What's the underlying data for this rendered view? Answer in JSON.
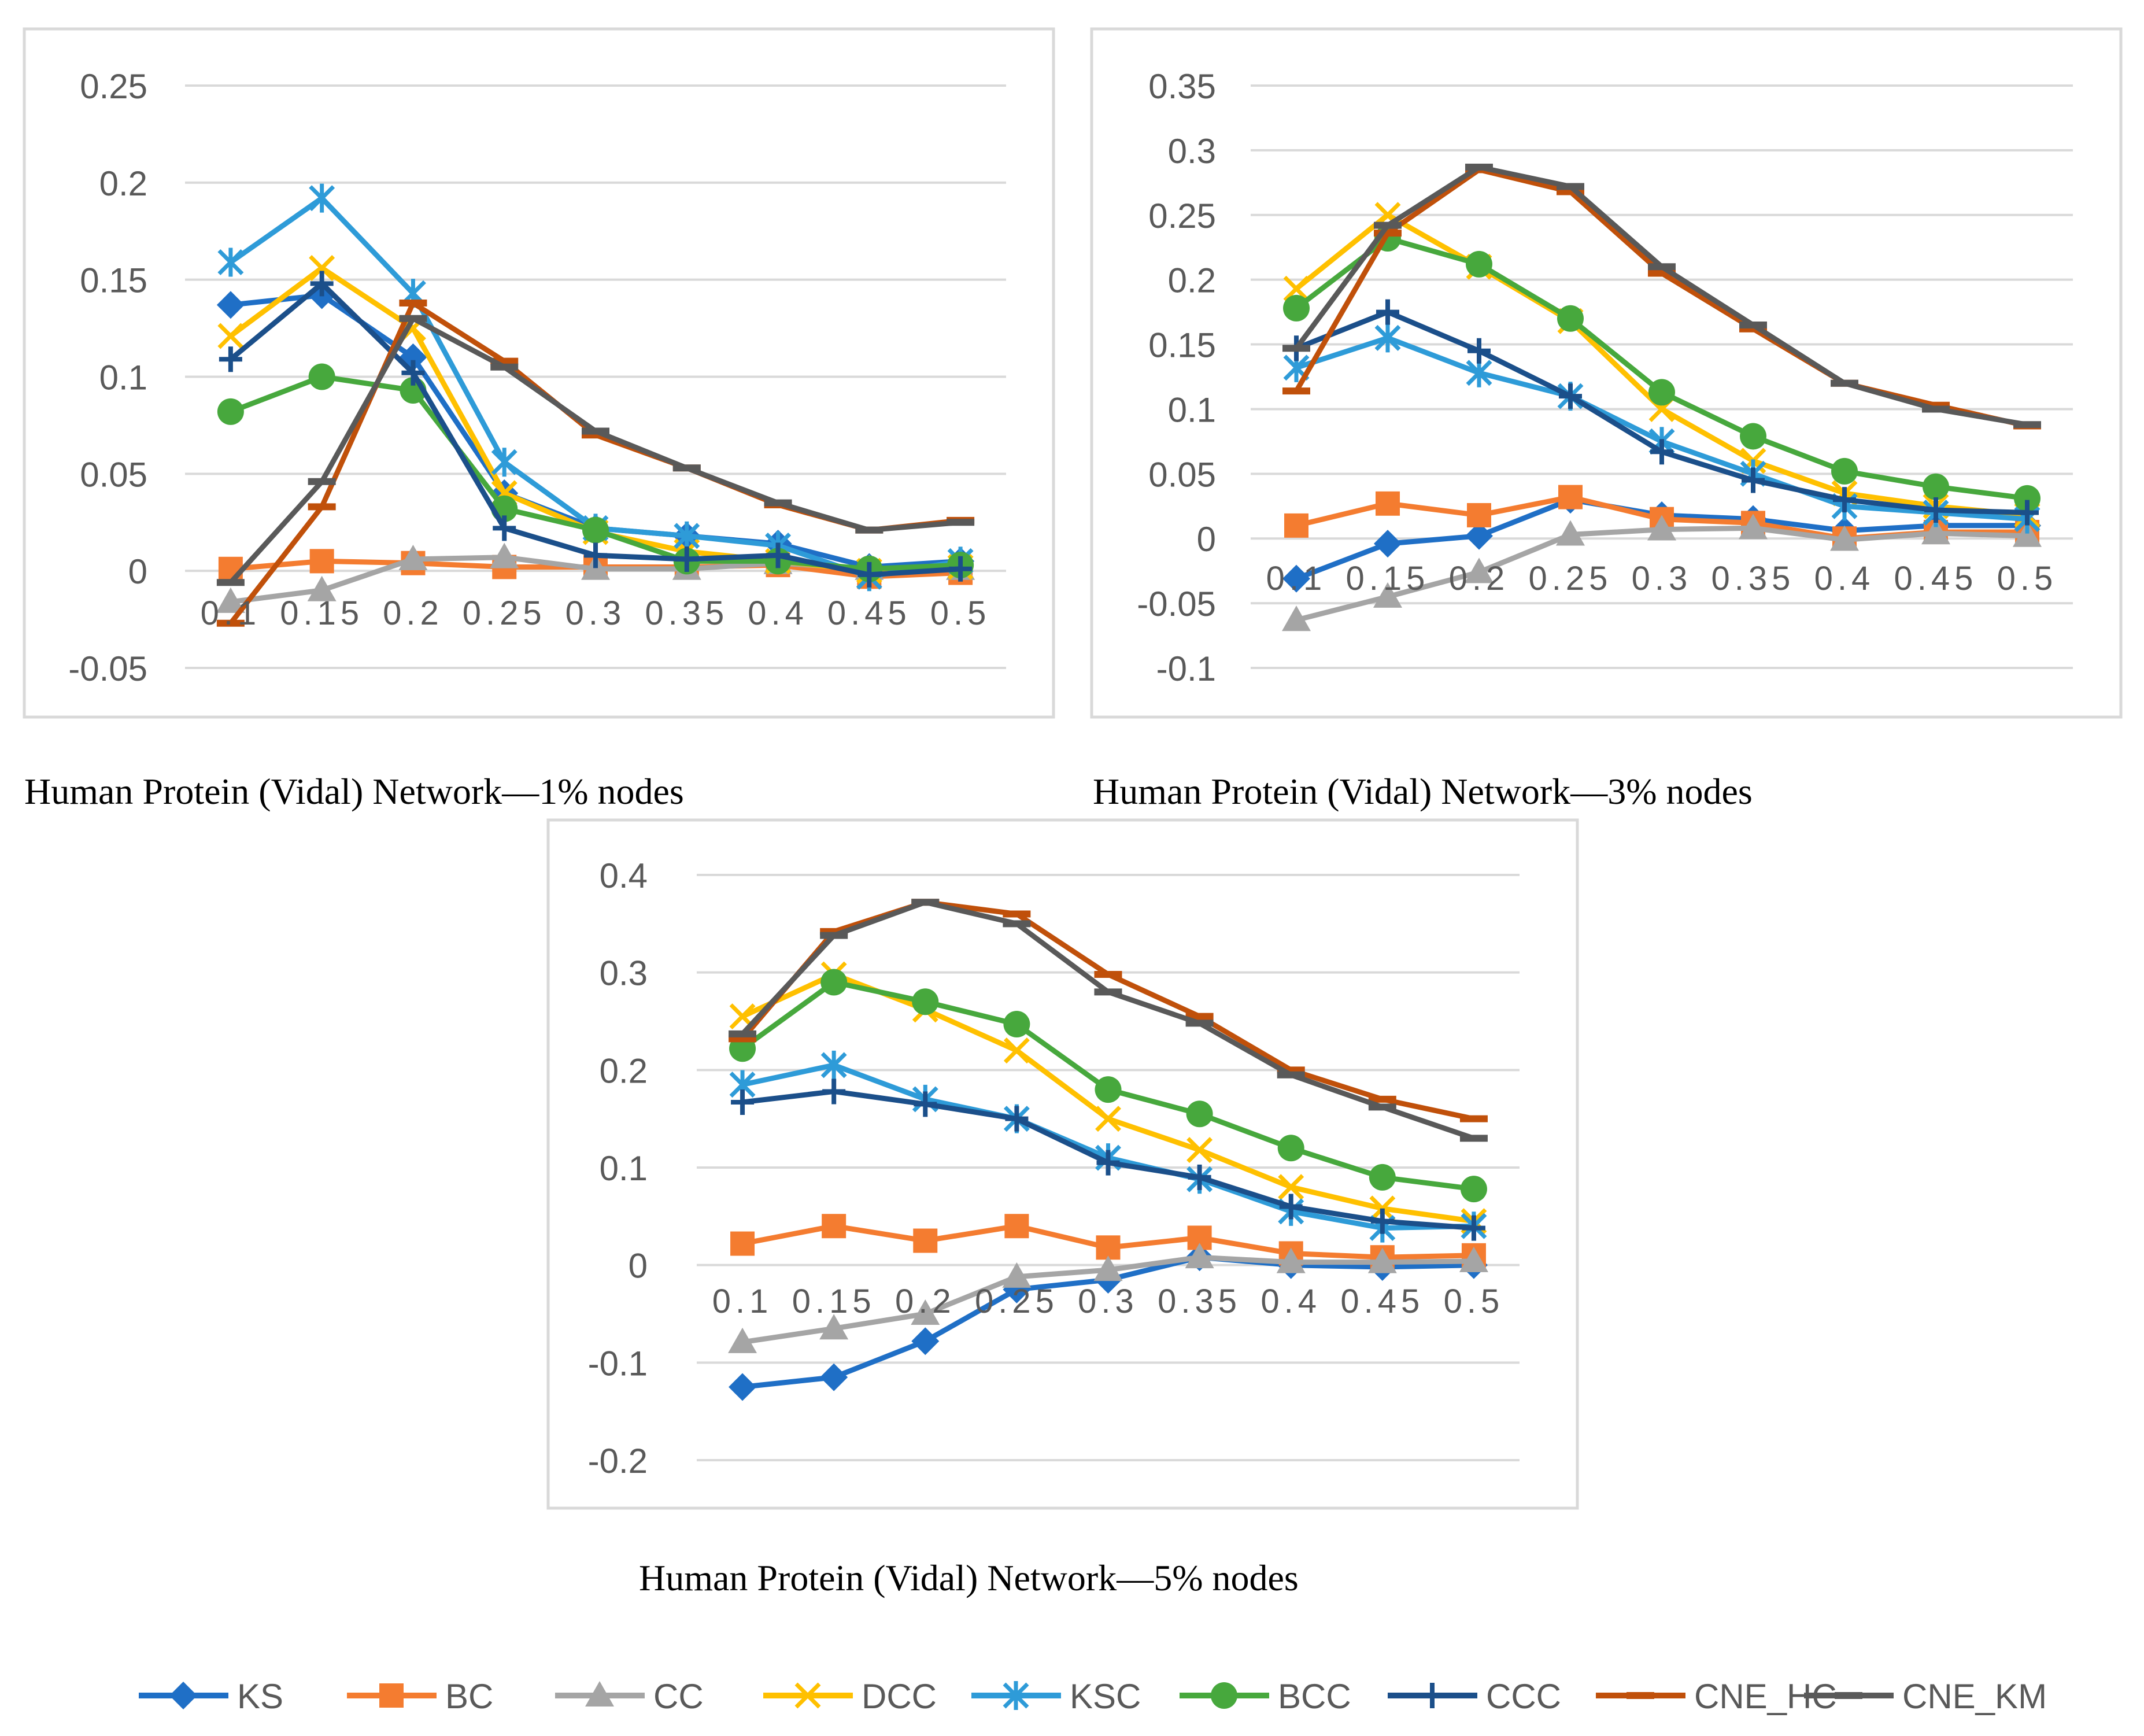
{
  "series_styles": [
    {
      "key": "KS",
      "color": "#1F6FC6",
      "marker": "diamond"
    },
    {
      "key": "BC",
      "color": "#F47C30",
      "marker": "square"
    },
    {
      "key": "CC",
      "color": "#A5A5A5",
      "marker": "triangle"
    },
    {
      "key": "DCC",
      "color": "#FFC000",
      "marker": "x"
    },
    {
      "key": "KSC",
      "color": "#2E9BD8",
      "marker": "star"
    },
    {
      "key": "BCC",
      "color": "#47A83D",
      "marker": "circle"
    },
    {
      "key": "CCC",
      "color": "#1B4F8A",
      "marker": "plus"
    },
    {
      "key": "CNE_HC",
      "color": "#C0500A",
      "marker": "dash"
    },
    {
      "key": "CNE_KM",
      "color": "#595959",
      "marker": "dash"
    }
  ],
  "legend": [
    "KS",
    "BC",
    "CC",
    "DCC",
    "KSC",
    "BCC",
    "CCC",
    "CNE_HC",
    "CNE_KM"
  ],
  "chart_data": [
    {
      "type": "line",
      "title": "Human Protein (Vidal) Network—1% nodes",
      "categories": [
        "0.1",
        "0.15",
        "0.2",
        "0.25",
        "0.3",
        "0.35",
        "0.4",
        "0.45",
        "0.5"
      ],
      "yticks": [
        "0.25",
        "0.2",
        "0.15",
        "0.1",
        "0.05",
        "0",
        "-0.05"
      ],
      "ylim": [
        -0.05,
        0.25
      ],
      "series": [
        {
          "name": "KS",
          "values": [
            0.137,
            0.142,
            0.11,
            0.04,
            0.022,
            0.018,
            0.014,
            0.002,
            0.005
          ]
        },
        {
          "name": "BC",
          "values": [
            0.001,
            0.005,
            0.004,
            0.002,
            0.002,
            0.002,
            0.003,
            -0.003,
            -0.001
          ]
        },
        {
          "name": "CC",
          "values": [
            -0.016,
            -0.01,
            0.006,
            0.007,
            0.001,
            0.001,
            0.004,
            0.001,
            0.001
          ]
        },
        {
          "name": "DCC",
          "values": [
            0.121,
            0.156,
            0.125,
            0.04,
            0.02,
            0.01,
            0.005,
            0.0,
            0.002
          ]
        },
        {
          "name": "KSC",
          "values": [
            0.159,
            0.192,
            0.143,
            0.056,
            0.022,
            0.018,
            0.013,
            -0.003,
            0.005
          ]
        },
        {
          "name": "BCC",
          "values": [
            0.082,
            0.1,
            0.093,
            0.032,
            0.021,
            0.005,
            0.005,
            0.001,
            0.003
          ]
        },
        {
          "name": "CCC",
          "values": [
            0.109,
            0.148,
            0.102,
            0.022,
            0.008,
            0.006,
            0.008,
            -0.002,
            0.001
          ]
        },
        {
          "name": "CNE_HC",
          "values": [
            -0.027,
            0.033,
            0.138,
            0.108,
            0.07,
            0.053,
            0.034,
            0.021,
            0.026
          ]
        },
        {
          "name": "CNE_KM",
          "values": [
            -0.006,
            0.046,
            0.13,
            0.105,
            0.072,
            0.053,
            0.035,
            0.021,
            0.025
          ]
        }
      ]
    },
    {
      "type": "line",
      "title": "Human Protein (Vidal) Network—3% nodes",
      "categories": [
        "0.1",
        "0.15",
        "0.2",
        "0.25",
        "0.3",
        "0.35",
        "0.4",
        "0.45",
        "0.5"
      ],
      "yticks": [
        "0.35",
        "0.3",
        "0.25",
        "0.2",
        "0.15",
        "0.1",
        "0.05",
        "0",
        "-0.05",
        "-0.1"
      ],
      "ylim": [
        -0.1,
        0.35
      ],
      "series": [
        {
          "name": "KS",
          "values": [
            -0.031,
            -0.004,
            0.002,
            0.03,
            0.018,
            0.015,
            0.006,
            0.01,
            0.01
          ]
        },
        {
          "name": "BC",
          "values": [
            0.01,
            0.027,
            0.018,
            0.032,
            0.015,
            0.012,
            0.0,
            0.005,
            0.005
          ]
        },
        {
          "name": "CC",
          "values": [
            -0.063,
            -0.045,
            -0.026,
            0.003,
            0.007,
            0.008,
            -0.001,
            0.004,
            0.002
          ]
        },
        {
          "name": "DCC",
          "values": [
            0.193,
            0.25,
            0.21,
            0.168,
            0.1,
            0.06,
            0.035,
            0.025,
            0.018
          ]
        },
        {
          "name": "KSC",
          "values": [
            0.132,
            0.155,
            0.128,
            0.11,
            0.075,
            0.05,
            0.025,
            0.02,
            0.015
          ]
        },
        {
          "name": "BCC",
          "values": [
            0.178,
            0.232,
            0.212,
            0.17,
            0.113,
            0.079,
            0.052,
            0.04,
            0.031
          ]
        },
        {
          "name": "CCC",
          "values": [
            0.147,
            0.175,
            0.145,
            0.11,
            0.067,
            0.045,
            0.03,
            0.022,
            0.02
          ]
        },
        {
          "name": "CNE_HC",
          "values": [
            0.114,
            0.236,
            0.285,
            0.268,
            0.205,
            0.162,
            0.12,
            0.103,
            0.087
          ]
        },
        {
          "name": "CNE_KM",
          "values": [
            0.147,
            0.242,
            0.287,
            0.272,
            0.21,
            0.165,
            0.12,
            0.1,
            0.088
          ]
        }
      ]
    },
    {
      "type": "line",
      "title": "Human Protein (Vidal) Network—5% nodes",
      "categories": [
        "0.1",
        "0.15",
        "0.2",
        "0.25",
        "0.3",
        "0.35",
        "0.4",
        "0.45",
        "0.5"
      ],
      "yticks": [
        "0.4",
        "0.3",
        "0.2",
        "0.1",
        "0",
        "-0.1",
        "-0.2"
      ],
      "ylim": [
        -0.2,
        0.4
      ],
      "series": [
        {
          "name": "KS",
          "values": [
            -0.125,
            -0.115,
            -0.078,
            -0.025,
            -0.015,
            0.008,
            0.0,
            -0.002,
            0.0
          ]
        },
        {
          "name": "BC",
          "values": [
            0.022,
            0.04,
            0.025,
            0.04,
            0.018,
            0.028,
            0.012,
            0.008,
            0.01
          ]
        },
        {
          "name": "CC",
          "values": [
            -0.079,
            -0.065,
            -0.05,
            -0.012,
            -0.005,
            0.008,
            0.003,
            0.003,
            0.004
          ]
        },
        {
          "name": "DCC",
          "values": [
            0.255,
            0.298,
            0.262,
            0.22,
            0.15,
            0.118,
            0.08,
            0.058,
            0.045
          ]
        },
        {
          "name": "KSC",
          "values": [
            0.185,
            0.205,
            0.17,
            0.15,
            0.11,
            0.088,
            0.055,
            0.038,
            0.04
          ]
        },
        {
          "name": "BCC",
          "values": [
            0.222,
            0.29,
            0.27,
            0.247,
            0.18,
            0.155,
            0.12,
            0.09,
            0.078
          ]
        },
        {
          "name": "CCC",
          "values": [
            0.167,
            0.178,
            0.165,
            0.15,
            0.105,
            0.09,
            0.06,
            0.045,
            0.038
          ]
        },
        {
          "name": "CNE_HC",
          "values": [
            0.232,
            0.342,
            0.372,
            0.36,
            0.298,
            0.255,
            0.2,
            0.17,
            0.15
          ]
        },
        {
          "name": "CNE_KM",
          "values": [
            0.237,
            0.338,
            0.372,
            0.35,
            0.28,
            0.248,
            0.195,
            0.162,
            0.13
          ]
        }
      ]
    }
  ]
}
